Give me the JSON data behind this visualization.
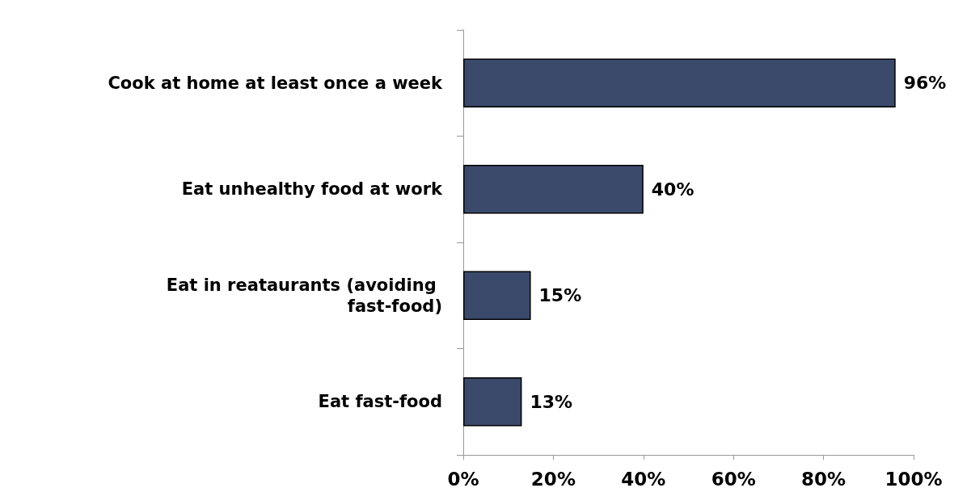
{
  "chart_data": {
    "type": "bar",
    "orientation": "horizontal",
    "categories": [
      "Cook at home at least once a week",
      "Eat unhealthy food at work",
      "Eat in reataurants (avoiding fast-food)",
      "Eat fast-food"
    ],
    "values": [
      96,
      40,
      15,
      13
    ],
    "value_labels": [
      "96%",
      "40%",
      "15%",
      "13%"
    ],
    "color": "#3b4a6b",
    "xlim": [
      0,
      100
    ],
    "xticks": [
      {
        "value": 0,
        "label": "0%"
      },
      {
        "value": 20,
        "label": "20%"
      },
      {
        "value": 40,
        "label": "40%"
      },
      {
        "value": 60,
        "label": "60%"
      },
      {
        "value": 80,
        "label": "80%"
      },
      {
        "value": 100,
        "label": "100%"
      }
    ],
    "grid": false
  }
}
